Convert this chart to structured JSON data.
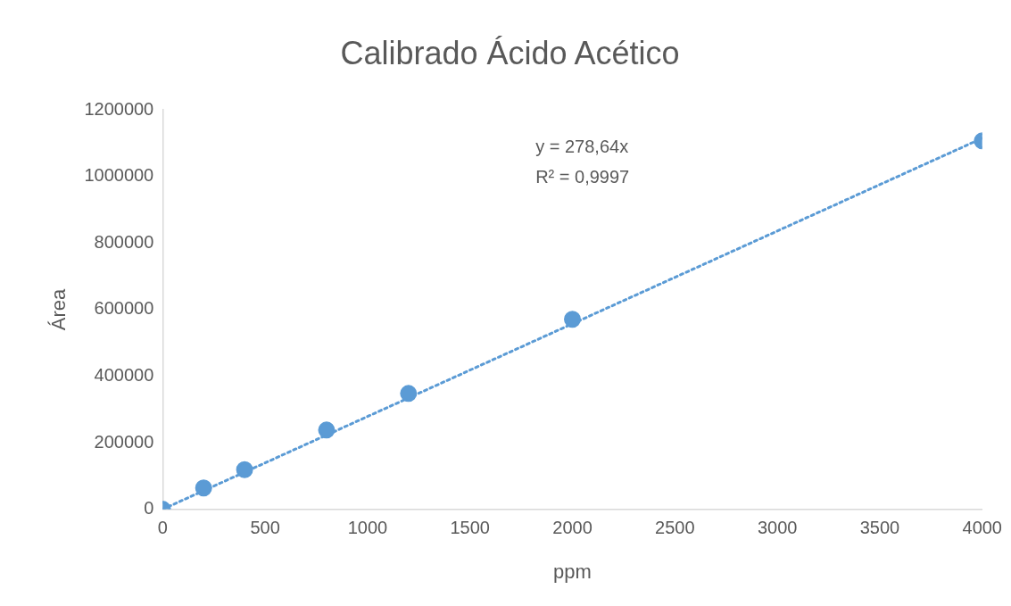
{
  "chart_data": {
    "type": "scatter",
    "title": "Calibrado Ácido Acético",
    "xlabel": "ppm",
    "ylabel": "Área",
    "xlim": [
      0,
      4000
    ],
    "xticks": [
      0,
      500,
      1000,
      1500,
      2000,
      2500,
      3000,
      3500,
      4000
    ],
    "ylim": [
      0,
      1200000
    ],
    "yticks": [
      0,
      200000,
      400000,
      600000,
      800000,
      1000000,
      1200000
    ],
    "grid": false,
    "legend": false,
    "series": [
      {
        "type": "scatter",
        "color": "#5b9bd5",
        "marker": "circle",
        "x": [
          0,
          200,
          400,
          800,
          1200,
          2000,
          4000
        ],
        "values": [
          0,
          64000,
          119000,
          238000,
          348000,
          571000,
          1107000
        ]
      },
      {
        "type": "line",
        "color": "#5b9bd5",
        "marker": "none",
        "line_style": "dotted",
        "x": [
          0,
          4000
        ],
        "values": [
          0,
          1115000
        ]
      }
    ],
    "annotations": [
      "y = 278,64x",
      "R² = 0,9997"
    ]
  }
}
